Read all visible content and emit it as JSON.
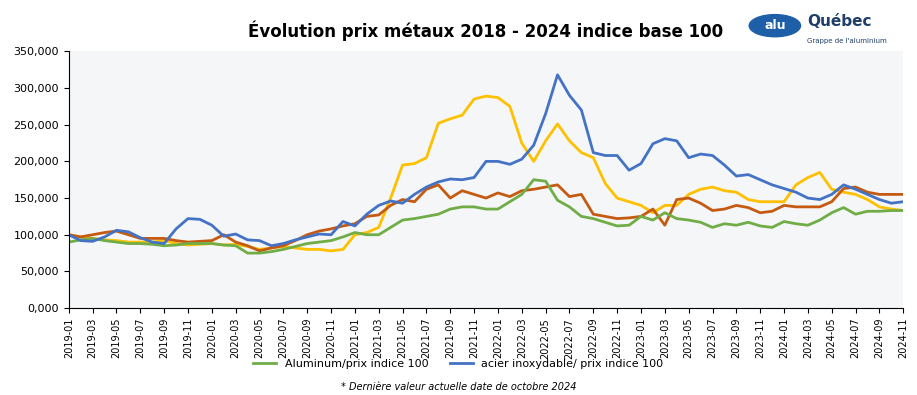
{
  "chart_data": {
    "type": "line",
    "title": "Évolution prix métaux 2018 - 2024 indice base 100",
    "annotations": [
      "* Dernière valeur actuelle date de octobre 2024",
      "alu",
      "Québec",
      "Grappe de l'aluminium"
    ],
    "categories": [
      "2019-01",
      null,
      "2019-03",
      null,
      "2019-05",
      null,
      "2019-07",
      null,
      "2019-09",
      null,
      "2019-11",
      null,
      "2020-01",
      null,
      "2020-03",
      null,
      "2020-05",
      null,
      "2020-07",
      null,
      "2020-09",
      null,
      "2020-11",
      null,
      "2021-01",
      null,
      "2021-03",
      null,
      "2021-05",
      null,
      "2021-07",
      null,
      "2021-09",
      null,
      "2021-11",
      null,
      "2022-01",
      null,
      "2022-03",
      null,
      "2022-05",
      null,
      "2022-07",
      null,
      "2022-09",
      null,
      "2022-11",
      null,
      "2023-01",
      null,
      "2023-03",
      null,
      "2023-05",
      null,
      "2023-07",
      null,
      "2023-09",
      null,
      "2023-11",
      null,
      "2024-01",
      null,
      "2024-03",
      null,
      "2024-05",
      null,
      "2024-07",
      null,
      "2024-09",
      null,
      "2024-11"
    ],
    "series": [
      {
        "color": "#FFC000",
        "values": [
          100,
          97,
          95,
          93,
          92,
          90,
          90,
          90,
          92,
          88,
          86,
          87,
          88,
          86,
          87,
          84,
          80,
          82,
          84,
          82,
          80,
          80,
          78,
          80,
          100,
          103,
          110,
          150,
          195,
          197,
          205,
          252,
          258,
          263,
          285,
          289,
          287,
          275,
          225,
          200,
          228,
          251,
          228,
          212,
          205,
          170,
          150,
          145,
          140,
          130,
          140,
          140,
          155,
          162,
          165,
          160,
          158,
          148,
          145,
          145,
          145,
          168,
          178,
          185,
          162,
          158,
          155,
          148,
          138,
          135,
          133
        ]
      },
      {
        "color": "#C55A11",
        "values": [
          100,
          97,
          100,
          103,
          105,
          100,
          95,
          95,
          95,
          92,
          90,
          91,
          92,
          100,
          90,
          85,
          78,
          82,
          85,
          92,
          100,
          105,
          108,
          112,
          115,
          125,
          127,
          140,
          148,
          145,
          162,
          168,
          150,
          160,
          155,
          150,
          157,
          152,
          160,
          162,
          165,
          168,
          152,
          155,
          128,
          125,
          122,
          123,
          125,
          135,
          113,
          148,
          150,
          143,
          133,
          135,
          140,
          137,
          130,
          132,
          140,
          138,
          138,
          138,
          145,
          163,
          165,
          158,
          155,
          155,
          155
        ]
      },
      {
        "name": "Aluminum/prix indice 100",
        "color": "#70AD47",
        "values": [
          90,
          93,
          95,
          92,
          90,
          88,
          88,
          87,
          85,
          86,
          88,
          88,
          88,
          86,
          85,
          75,
          75,
          77,
          80,
          84,
          88,
          90,
          92,
          97,
          103,
          100,
          100,
          110,
          120,
          122,
          125,
          128,
          135,
          138,
          138,
          135,
          135,
          145,
          155,
          175,
          173,
          147,
          138,
          125,
          122,
          117,
          112,
          113,
          125,
          120,
          130,
          122,
          120,
          117,
          110,
          115,
          113,
          117,
          112,
          110,
          118,
          115,
          113,
          120,
          130,
          137,
          128,
          132,
          132,
          133,
          133
        ]
      },
      {
        "name": "acier inoxydable/ prix indice 100",
        "color": "#4472C4",
        "values": [
          100,
          92,
          91,
          97,
          106,
          104,
          96,
          90,
          88,
          108,
          122,
          121,
          113,
          98,
          101,
          93,
          92,
          85,
          88,
          93,
          97,
          101,
          100,
          118,
          112,
          128,
          140,
          146,
          143,
          155,
          165,
          172,
          176,
          175,
          178,
          200,
          200,
          196,
          203,
          222,
          265,
          318,
          290,
          270,
          212,
          208,
          208,
          188,
          197,
          224,
          231,
          228,
          205,
          210,
          208,
          195,
          180,
          182,
          175,
          168,
          163,
          158,
          150,
          148,
          155,
          168,
          162,
          155,
          148,
          143,
          145
        ]
      }
    ],
    "ylim": [
      0,
      350
    ],
    "yticks": [
      {
        "value": 0,
        "label": "0,000"
      },
      {
        "value": 50,
        "label": "50,000"
      },
      {
        "value": 100,
        "label": "100,000"
      },
      {
        "value": 150,
        "label": "150,000"
      },
      {
        "value": 200,
        "label": "200,000"
      },
      {
        "value": 250,
        "label": "250,000"
      },
      {
        "value": 300,
        "label": "300,000"
      },
      {
        "value": 350,
        "label": "350,000"
      }
    ],
    "grid": false,
    "legend": "lower center"
  }
}
